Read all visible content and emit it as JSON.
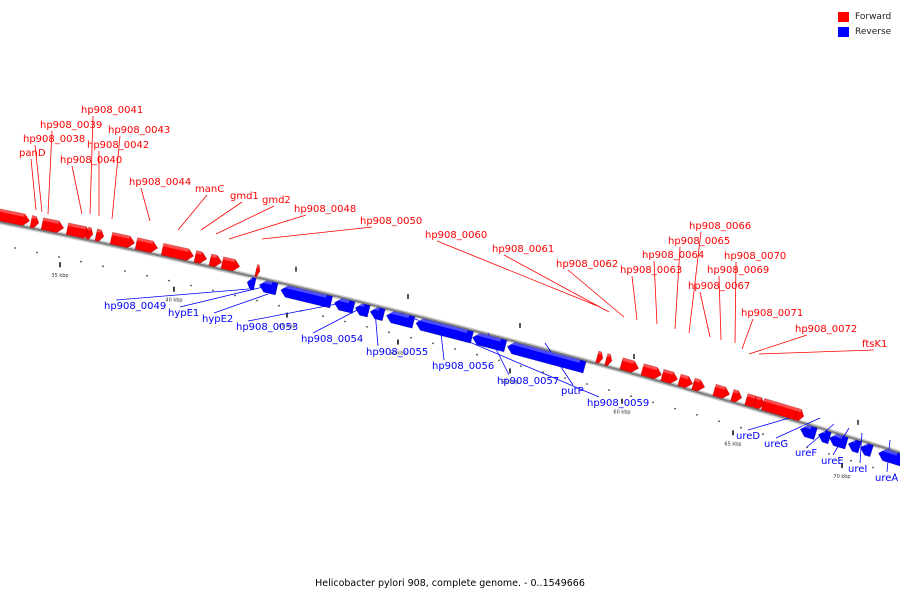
{
  "colors": {
    "forward": "#ff0000",
    "reverse": "#0000ff",
    "backbone": "#808080"
  },
  "legend": {
    "forward_label": "Forward",
    "reverse_label": "Reverse"
  },
  "caption": "Helicobacter pylori 908, complete genome. - 0..1549666",
  "tick_labels": [
    "35 kbp",
    "40 kbp",
    "45 kbp",
    "50 kbp",
    "55 kbp",
    "60 kbp",
    "65 kbp",
    "70 kbp"
  ],
  "genes": [
    {
      "name": "panD",
      "strand": "forward"
    },
    {
      "name": "hp908_0038",
      "strand": "forward"
    },
    {
      "name": "hp908_0039",
      "strand": "forward"
    },
    {
      "name": "hp908_0040",
      "strand": "forward"
    },
    {
      "name": "hp908_0041",
      "strand": "forward"
    },
    {
      "name": "hp908_0042",
      "strand": "forward"
    },
    {
      "name": "hp908_0043",
      "strand": "forward"
    },
    {
      "name": "hp908_0044",
      "strand": "forward"
    },
    {
      "name": "manC",
      "strand": "forward"
    },
    {
      "name": "gmd1",
      "strand": "forward"
    },
    {
      "name": "gmd2",
      "strand": "forward"
    },
    {
      "name": "hp908_0048",
      "strand": "forward"
    },
    {
      "name": "hp908_0050",
      "strand": "forward"
    },
    {
      "name": "hp908_0060",
      "strand": "forward"
    },
    {
      "name": "hp908_0061",
      "strand": "forward"
    },
    {
      "name": "hp908_0062",
      "strand": "forward"
    },
    {
      "name": "hp908_0063",
      "strand": "forward"
    },
    {
      "name": "hp908_0064",
      "strand": "forward"
    },
    {
      "name": "hp908_0065",
      "strand": "forward"
    },
    {
      "name": "hp908_0066",
      "strand": "forward"
    },
    {
      "name": "hp908_0067",
      "strand": "forward"
    },
    {
      "name": "hp908_0069",
      "strand": "forward"
    },
    {
      "name": "hp908_0070",
      "strand": "forward"
    },
    {
      "name": "hp908_0071",
      "strand": "forward"
    },
    {
      "name": "hp908_0072",
      "strand": "forward"
    },
    {
      "name": "ftsK1",
      "strand": "forward"
    },
    {
      "name": "hp908_0049",
      "strand": "reverse"
    },
    {
      "name": "hypE1",
      "strand": "reverse"
    },
    {
      "name": "hypE2",
      "strand": "reverse"
    },
    {
      "name": "hp908_0053",
      "strand": "reverse"
    },
    {
      "name": "hp908_0054",
      "strand": "reverse"
    },
    {
      "name": "hp908_0055",
      "strand": "reverse"
    },
    {
      "name": "hp908_0056",
      "strand": "reverse"
    },
    {
      "name": "hp908_0057",
      "strand": "reverse"
    },
    {
      "name": "putP",
      "strand": "reverse"
    },
    {
      "name": "hp908_0059",
      "strand": "reverse"
    },
    {
      "name": "ureD",
      "strand": "reverse"
    },
    {
      "name": "ureG",
      "strand": "reverse"
    },
    {
      "name": "ureF",
      "strand": "reverse"
    },
    {
      "name": "ureE",
      "strand": "reverse"
    },
    {
      "name": "ureI",
      "strand": "reverse"
    },
    {
      "name": "ureA",
      "strand": "reverse"
    }
  ]
}
